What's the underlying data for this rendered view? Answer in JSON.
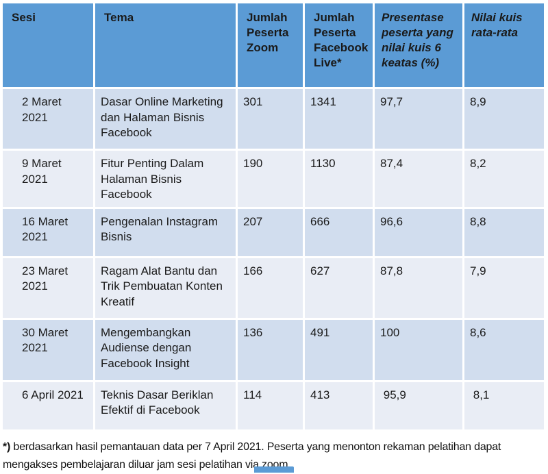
{
  "table": {
    "headers": [
      "Sesi",
      "Tema",
      "Jumlah Peserta Zoom",
      "Jumlah Peserta Facebook Live*",
      "Presentase peserta yang nilai kuis 6 keatas (%)",
      "Nilai kuis rata-rata"
    ],
    "rows": [
      [
        "2 Maret 2021",
        "Dasar Online Marketing dan Halaman Bisnis Facebook",
        "301",
        "1341",
        "97,7",
        "8,9"
      ],
      [
        "9 Maret 2021",
        "Fitur Penting Dalam Halaman Bisnis Facebook",
        "190",
        "1130",
        "87,4",
        "8,2"
      ],
      [
        "16 Maret  2021",
        "Pengenalan Instagram Bisnis",
        "207",
        "666",
        "96,6",
        "8,8"
      ],
      [
        "23 Maret 2021",
        "Ragam Alat Bantu dan Trik Pembuatan Konten Kreatif",
        "166",
        "627",
        "87,8",
        "7,9"
      ],
      [
        "30 Maret 2021",
        "Mengembangkan Audiense dengan Facebook Insight",
        "136",
        "491",
        "100",
        "8,6"
      ],
      [
        "6 April 2021",
        "Teknis Dasar Beriklan Efektif di Facebook",
        "114",
        "413",
        " 95,9",
        " 8,1"
      ]
    ]
  },
  "footnote": {
    "marker": "*)",
    "text": " berdasarkan hasil pemantauan data per 7 April 2021. Peserta yang menonton rekaman pelatihan dapat mengakses pembelajaran diluar jam sesi pelatihan via zoom."
  },
  "colors": {
    "header_bg": "#5B9BD5",
    "row_band_dark": "#D1DDEE",
    "row_band_light": "#E9EDF5",
    "text": "#1A1A1A"
  }
}
